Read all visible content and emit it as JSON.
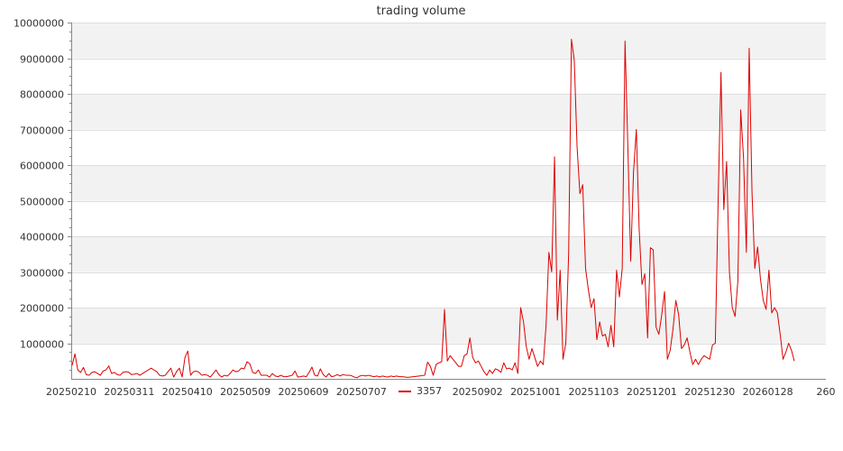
{
  "chart_data": {
    "type": "line",
    "title": "trading volume",
    "xlabel": "",
    "ylabel": "",
    "ylim": [
      0,
      10000000
    ],
    "yticks": [
      1000000,
      2000000,
      3000000,
      4000000,
      5000000,
      6000000,
      7000000,
      8000000,
      9000000,
      10000000
    ],
    "ytick_labels": [
      "1000000",
      "2000000",
      "3000000",
      "4000000",
      "5000000",
      "6000000",
      "7000000",
      "8000000",
      "9000000",
      "10000000"
    ],
    "xtick_labels": [
      "20250210",
      "20250311",
      "20250410",
      "20250509",
      "20250609",
      "20250707",
      "20250902",
      "20251001",
      "20251103",
      "20251201",
      "20251230",
      "20260128",
      "260"
    ],
    "grid": true,
    "legend": "bottom-center",
    "colors": {
      "series": "#dd0000",
      "band": "#f2f2f2",
      "grid": "#dddddd",
      "axis": "#888888"
    },
    "series": [
      {
        "name": "3357",
        "values": [
          380000,
          700000,
          250000,
          180000,
          320000,
          120000,
          100000,
          180000,
          200000,
          150000,
          100000,
          220000,
          250000,
          360000,
          150000,
          180000,
          120000,
          100000,
          180000,
          200000,
          190000,
          120000,
          130000,
          150000,
          100000,
          150000,
          200000,
          250000,
          300000,
          250000,
          200000,
          100000,
          80000,
          100000,
          200000,
          300000,
          50000,
          200000,
          300000,
          50000,
          600000,
          780000,
          100000,
          200000,
          220000,
          180000,
          100000,
          120000,
          100000,
          50000,
          150000,
          250000,
          120000,
          50000,
          100000,
          80000,
          150000,
          250000,
          200000,
          220000,
          300000,
          280000,
          480000,
          420000,
          180000,
          150000,
          250000,
          100000,
          100000,
          100000,
          50000,
          150000,
          80000,
          60000,
          100000,
          60000,
          60000,
          80000,
          100000,
          220000,
          50000,
          60000,
          80000,
          60000,
          180000,
          330000,
          100000,
          80000,
          280000,
          120000,
          50000,
          150000,
          60000,
          80000,
          120000,
          80000,
          120000,
          100000,
          100000,
          90000,
          50000,
          30000,
          80000,
          100000,
          80000,
          100000,
          80000,
          60000,
          80000,
          50000,
          80000,
          60000,
          50000,
          80000,
          60000,
          80000,
          60000,
          60000,
          50000,
          40000,
          50000,
          60000,
          70000,
          80000,
          90000,
          100000,
          470000,
          350000,
          100000,
          400000,
          450000,
          480000,
          1950000,
          500000,
          650000,
          550000,
          450000,
          350000,
          350000,
          650000,
          700000,
          1150000,
          600000,
          450000,
          500000,
          350000,
          200000,
          100000,
          250000,
          150000,
          280000,
          250000,
          180000,
          450000,
          280000,
          300000,
          250000,
          450000,
          150000,
          2000000,
          1600000,
          900000,
          550000,
          850000,
          600000,
          350000,
          500000,
          400000,
          1500000,
          3550000,
          3000000,
          6230000,
          1650000,
          3050000,
          550000,
          1000000,
          3500000,
          9530000,
          8950000,
          6500000,
          5200000,
          5450000,
          3100000,
          2500000,
          2000000,
          2250000,
          1100000,
          1600000,
          1200000,
          1250000,
          900000,
          1500000,
          900000,
          3050000,
          2300000,
          3100000,
          9480000,
          6500000,
          3300000,
          5800000,
          7000000,
          4200000,
          2650000,
          2950000,
          1150000,
          3680000,
          3620000,
          1450000,
          1250000,
          1800000,
          2450000,
          550000,
          800000,
          1400000,
          2200000,
          1800000,
          850000,
          950000,
          1150000,
          750000,
          400000,
          550000,
          400000,
          550000,
          650000,
          600000,
          550000,
          950000,
          1000000,
          5000000,
          8600000,
          4750000,
          6100000,
          3000000,
          2000000,
          1750000,
          2750000,
          7550000,
          6200000,
          3550000,
          9280000,
          5250000,
          3100000,
          3700000,
          2800000,
          2200000,
          1950000,
          3050000,
          1850000,
          2000000,
          1850000,
          1250000,
          550000,
          750000,
          1000000,
          800000,
          500000
        ]
      }
    ]
  }
}
